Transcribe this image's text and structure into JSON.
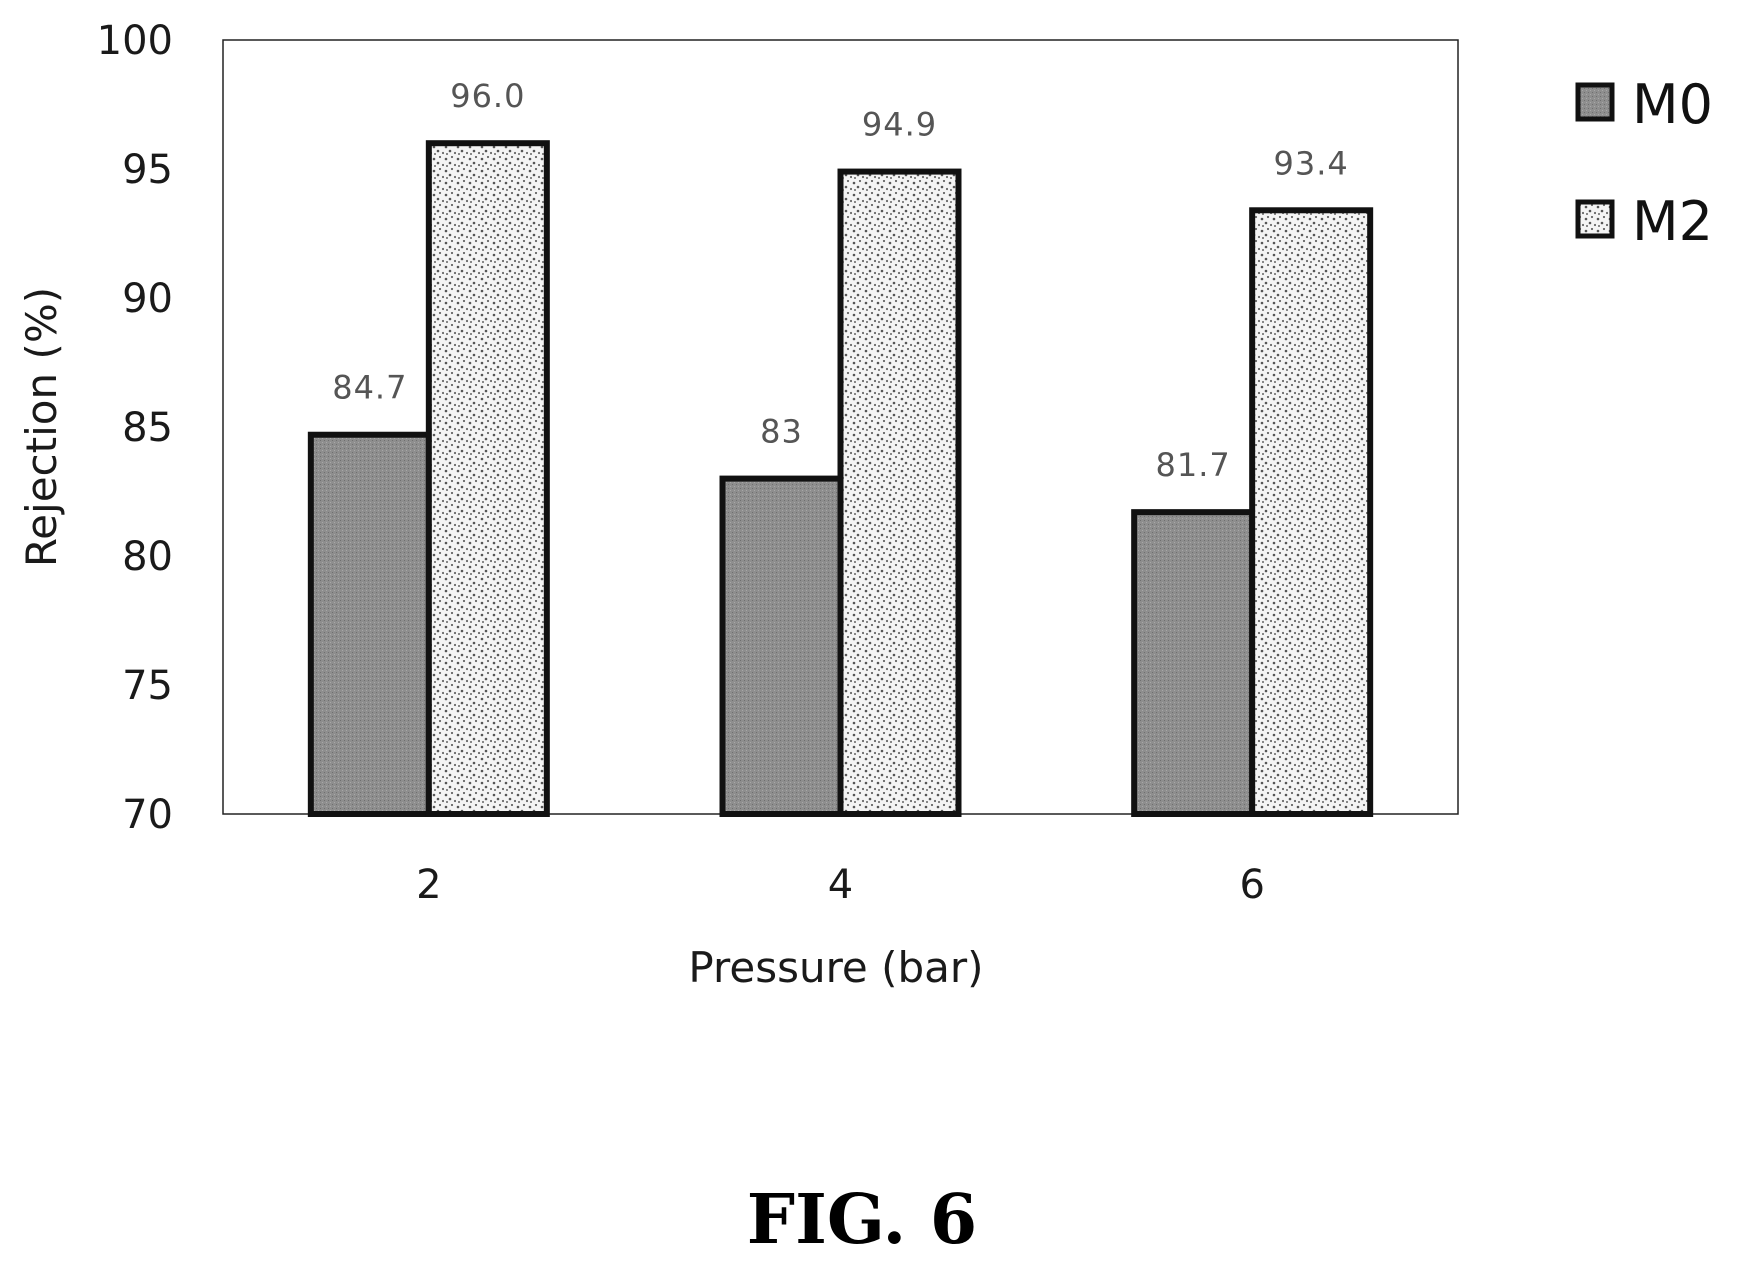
{
  "chart_data": {
    "type": "bar",
    "categories": [
      "2",
      "4",
      "6"
    ],
    "series": [
      {
        "name": "M0",
        "values": [
          84.7,
          83,
          81.7
        ],
        "labels": [
          "84.7",
          "83",
          "81.7"
        ],
        "color": "#8c8c8c",
        "pattern": "solid-gray"
      },
      {
        "name": "M2",
        "values": [
          96.0,
          94.9,
          93.4
        ],
        "labels": [
          "96.0",
          "94.9",
          "93.4"
        ],
        "color": "#f2f2f2",
        "pattern": "dotted"
      }
    ],
    "xlabel": "Pressure (bar)",
    "ylabel": "Rejection (%)",
    "ylim": [
      70,
      100
    ],
    "yticks": [
      "70",
      "75",
      "80",
      "85",
      "90",
      "95",
      "100"
    ],
    "legend_position": "right",
    "grid": false
  },
  "caption": "FIG. 6"
}
